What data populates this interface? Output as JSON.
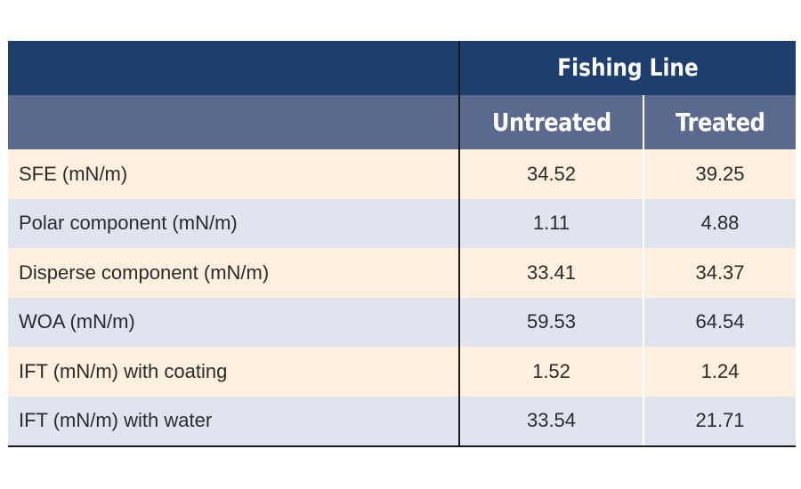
{
  "table": {
    "group_header": "Fishing Line",
    "columns": [
      "Untreated",
      "Treated"
    ],
    "rows": [
      {
        "label": "SFE (mN/m)",
        "untreated": "34.52",
        "treated": "39.25"
      },
      {
        "label": "Polar component (mN/m)",
        "untreated": "1.11",
        "treated": "4.88"
      },
      {
        "label": "Disperse component (mN/m)",
        "untreated": "33.41",
        "treated": "34.37"
      },
      {
        "label": "WOA (mN/m)",
        "untreated": "59.53",
        "treated": "64.54"
      },
      {
        "label": "IFT (mN/m) with coating",
        "untreated": "1.52",
        "treated": "1.24"
      },
      {
        "label": "IFT (mN/m) with water",
        "untreated": "33.54",
        "treated": "21.71"
      }
    ]
  },
  "colors": {
    "header_dark": "#1e3f6e",
    "header_sub": "#5a6a8e",
    "row_peach": "#fdf0df",
    "row_blue": "#dfe4ee"
  }
}
